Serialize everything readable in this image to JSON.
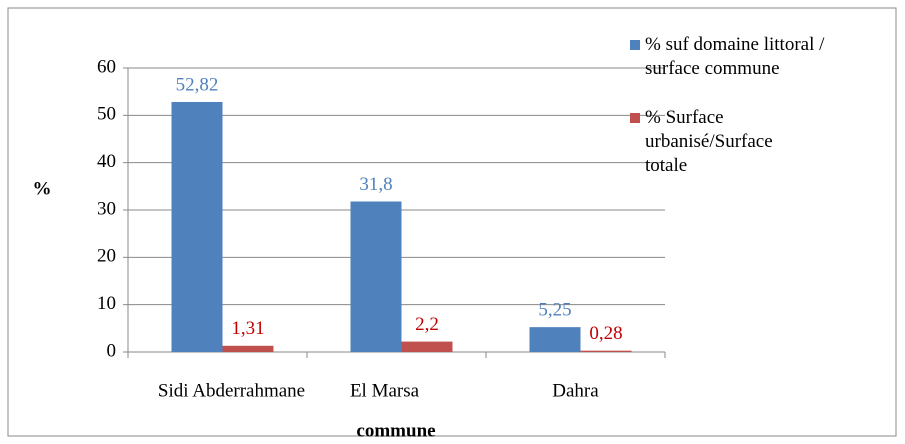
{
  "chart_data": {
    "type": "bar",
    "categories": [
      "Sidi Abderrahmane",
      "El Marsa",
      "Dahra"
    ],
    "series": [
      {
        "name": "% suf domaine littoral / surface commune",
        "color": "#4f81bd",
        "label_color": "#4f81bd",
        "values": [
          52.82,
          31.8,
          5.25
        ],
        "value_labels": [
          "52,82",
          "31,8",
          "5,25"
        ]
      },
      {
        "name": "% Surface urbanisé/Surface totale",
        "color": "#c0504d",
        "label_color": "#c00000",
        "values": [
          1.31,
          2.2,
          0.28
        ],
        "value_labels": [
          "1,31",
          "2,2",
          "0,28"
        ]
      }
    ],
    "xlabel": "commune",
    "ylabel": "%",
    "ylim": [
      0,
      60
    ],
    "yticks": [
      0,
      10,
      20,
      30,
      40,
      50,
      60
    ],
    "grid": true,
    "legend": "upper right"
  }
}
